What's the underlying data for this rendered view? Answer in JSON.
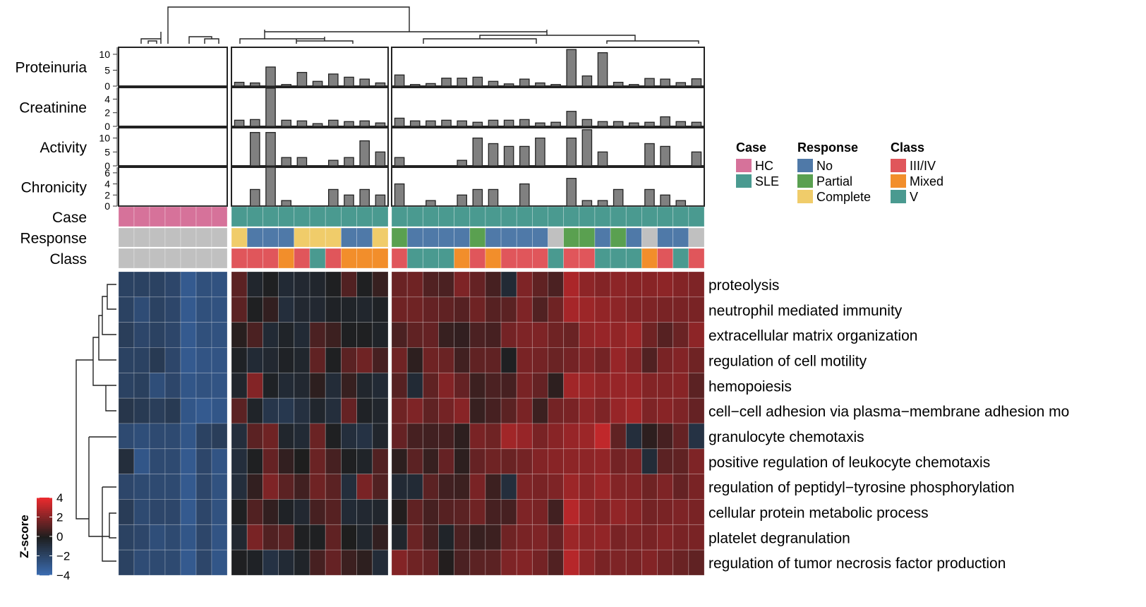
{
  "chart_data": {
    "type": "heatmap",
    "colorbar": {
      "title": "Z-score",
      "range": [
        -4,
        4
      ],
      "ticks": [
        4,
        2,
        0,
        -2,
        -4
      ],
      "tick_labels": [
        "4",
        "2",
        "0",
        "−2",
        "−4"
      ],
      "low_color": "#3b6eb5",
      "mid_color": "#1e1e1e",
      "high_color": "#e82a2e"
    },
    "rows": [
      "proteolysis",
      "neutrophil mediated immunity",
      "extracellular matrix organization",
      "regulation of cell motility",
      "hemopoiesis",
      "cell−cell adhesion via plasma−membrane adhesion mo",
      "granulocyte chemotaxis",
      "positive regulation of leukocyte chemotaxis",
      "regulation of peptidyl−tyrosine phosphorylation",
      "cellular protein metabolic process",
      "platelet degranulation",
      "regulation of tumor necrosis factor production"
    ],
    "column_groups": [
      7,
      10,
      20
    ],
    "annotations": {
      "labels": [
        "Case",
        "Response",
        "Class"
      ],
      "case": [
        "HC",
        "HC",
        "HC",
        "HC",
        "HC",
        "HC",
        "HC",
        "SLE",
        "SLE",
        "SLE",
        "SLE",
        "SLE",
        "SLE",
        "SLE",
        "SLE",
        "SLE",
        "SLE",
        "SLE",
        "SLE",
        "SLE",
        "SLE",
        "SLE",
        "SLE",
        "SLE",
        "SLE",
        "SLE",
        "SLE",
        "SLE",
        "SLE",
        "SLE",
        "SLE",
        "SLE",
        "SLE",
        "SLE",
        "SLE",
        "SLE",
        "SLE"
      ],
      "response": [
        "NA",
        "NA",
        "NA",
        "NA",
        "NA",
        "NA",
        "NA",
        "Complete",
        "No",
        "No",
        "No",
        "Complete",
        "Complete",
        "Complete",
        "No",
        "No",
        "Complete",
        "Partial",
        "No",
        "No",
        "No",
        "No",
        "Partial",
        "No",
        "No",
        "No",
        "No",
        "NA",
        "Partial",
        "Partial",
        "No",
        "Partial",
        "No",
        "NA",
        "No",
        "No",
        "NA"
      ],
      "class": [
        "NA",
        "NA",
        "NA",
        "NA",
        "NA",
        "NA",
        "NA",
        "III/IV",
        "III/IV",
        "III/IV",
        "Mixed",
        "III/IV",
        "V",
        "III/IV",
        "Mixed",
        "Mixed",
        "Mixed",
        "III/IV",
        "V",
        "V",
        "V",
        "Mixed",
        "III/IV",
        "Mixed",
        "III/IV",
        "III/IV",
        "III/IV",
        "V",
        "III/IV",
        "III/IV",
        "V",
        "V",
        "V",
        "Mixed",
        "III/IV",
        "V",
        "III/IV"
      ]
    },
    "tracks": [
      {
        "name": "Proteinuria",
        "ylim": [
          0,
          12.2
        ],
        "ticks": [
          0,
          5,
          10
        ],
        "tick_labels": [
          "0",
          "5",
          "10"
        ],
        "values": [
          null,
          null,
          null,
          null,
          null,
          null,
          null,
          1.2,
          1.0,
          6.0,
          0.5,
          4.3,
          1.5,
          3.8,
          2.8,
          2.2,
          1.0,
          3.5,
          0.5,
          0.8,
          2.5,
          2.5,
          2.8,
          1.5,
          0.7,
          2.2,
          1.0,
          0.5,
          11.5,
          3.2,
          10.5,
          1.2,
          0.5,
          2.4,
          2.2,
          1.1,
          2.3
        ]
      },
      {
        "name": "Creatinine",
        "ylim": [
          0,
          5.7
        ],
        "ticks": [
          0,
          2,
          4
        ],
        "tick_labels": [
          "0",
          "2",
          "4"
        ],
        "values": [
          null,
          null,
          null,
          null,
          null,
          null,
          null,
          0.9,
          1.0,
          5.6,
          0.9,
          0.8,
          0.4,
          0.9,
          0.7,
          0.8,
          0.5,
          1.2,
          0.8,
          0.8,
          0.9,
          0.8,
          0.6,
          0.9,
          0.9,
          1.0,
          0.5,
          0.6,
          2.2,
          1.0,
          0.7,
          0.7,
          0.5,
          0.6,
          1.4,
          0.7,
          0.6
        ]
      },
      {
        "name": "Activity",
        "ylim": [
          0,
          13.7
        ],
        "ticks": [
          0,
          5,
          10
        ],
        "tick_labels": [
          "0",
          "5",
          "10"
        ],
        "values": [
          null,
          null,
          null,
          null,
          null,
          null,
          null,
          0,
          12,
          12,
          3,
          3,
          0,
          2,
          3,
          9,
          5,
          3,
          0,
          0,
          0,
          2,
          10,
          8,
          7,
          7,
          10,
          0,
          10,
          13,
          5,
          0,
          0,
          8,
          7,
          0,
          5
        ]
      },
      {
        "name": "Chronicity",
        "ylim": [
          0,
          7
        ],
        "ticks": [
          0,
          2,
          4,
          6
        ],
        "tick_labels": [
          "0",
          "2",
          "4",
          "6"
        ],
        "values": [
          null,
          null,
          null,
          null,
          null,
          null,
          null,
          0,
          3,
          7,
          1,
          0,
          0,
          3,
          2,
          3,
          2,
          4,
          0,
          1,
          0,
          2,
          3,
          3,
          0,
          4,
          0,
          0,
          5,
          1,
          1,
          3,
          0,
          3,
          2,
          1,
          0
        ]
      }
    ],
    "values": [
      [
        -1.8,
        -1.8,
        -1.8,
        -2,
        -3,
        -2.5,
        -2.6,
        1.2,
        -0.4,
        -0.1,
        -0.6,
        -0.5,
        -0.4,
        -0.1,
        1.0,
        -0.1,
        0.5,
        1.5,
        1.6,
        1.0,
        0.9,
        1.9,
        1.4,
        0.8,
        -0.6,
        1.9,
        1.3,
        0.9,
        2.8,
        2.2,
        2.0,
        2.2,
        2.1,
        2.1,
        2.2,
        2.0,
        1.9
      ],
      [
        -1.8,
        -2.3,
        -1.8,
        -2,
        -3,
        -2.5,
        -2.6,
        1.2,
        -0.1,
        0.4,
        -0.8,
        -0.5,
        -0.5,
        -0.2,
        -0.3,
        -0.4,
        -0.2,
        1.6,
        1.6,
        1.4,
        1.3,
        1.1,
        1.6,
        1.1,
        1.2,
        1.9,
        1.0,
        1.6,
        2.7,
        2.5,
        2.3,
        2.2,
        2.0,
        1.9,
        1.8,
        1.8,
        1.8
      ],
      [
        -1.6,
        -2,
        -1.8,
        -2,
        -3,
        -2.5,
        -2.6,
        0.2,
        0.9,
        -0.6,
        -0.3,
        -0.6,
        0.9,
        0.6,
        -0.1,
        -0.1,
        -0.3,
        0.9,
        1.3,
        1.4,
        0.5,
        0.4,
        0.9,
        0.8,
        1.7,
        1.9,
        1.9,
        1.6,
        1.5,
        2.3,
        2.4,
        2.3,
        2.5,
        1.6,
        1.1,
        1.5,
        2.2
      ],
      [
        -1.8,
        -1.8,
        -1.4,
        -2,
        -3,
        -2.7,
        -2.7,
        -0.2,
        -0.6,
        -0.5,
        -0.2,
        -0.4,
        1.3,
        -0.1,
        1.2,
        1.6,
        0.8,
        1.6,
        0.3,
        1.6,
        1.5,
        0.7,
        1.3,
        1.3,
        -0.1,
        1.8,
        1.7,
        1.5,
        1.7,
        2.0,
        1.7,
        2.4,
        2.0,
        1.0,
        1.8,
        2.0,
        1.6
      ],
      [
        -1.8,
        -1.7,
        -2.4,
        -2,
        -2.8,
        -2.6,
        -2.7,
        -0.4,
        2.0,
        -0.2,
        -0.6,
        -0.5,
        0.3,
        -0.7,
        0.5,
        -0.4,
        -0.6,
        1.1,
        -0.6,
        1.3,
        2.0,
        1.4,
        0.6,
        0.9,
        0.8,
        1.8,
        1.4,
        0.3,
        2.6,
        2.5,
        2.3,
        2.4,
        2.4,
        2.0,
        2.0,
        2.1,
        1.2
      ],
      [
        -1.2,
        -1.4,
        -1.6,
        -1.4,
        -2.8,
        -3,
        -2.8,
        1.2,
        -0.3,
        -1.2,
        -1.3,
        -0.9,
        -0.4,
        -0.8,
        1.4,
        -0.2,
        -0.4,
        1.6,
        1.9,
        1.3,
        1.7,
        2.1,
        0.5,
        0.8,
        1.2,
        1.8,
        0.6,
        1.7,
        1.8,
        2.2,
        1.9,
        2.4,
        2.6,
        1.9,
        2.1,
        1.9,
        1.4
      ],
      [
        -2.2,
        -2.4,
        -2.2,
        -2.2,
        -2.8,
        -1.8,
        -1.6,
        -0.8,
        1.2,
        1.6,
        -0.4,
        -0.6,
        1.5,
        -0.1,
        -0.8,
        -1.0,
        -0.4,
        1.4,
        0.8,
        0.7,
        0.8,
        0.3,
        1.8,
        1.6,
        2.6,
        2.4,
        1.8,
        2.1,
        2.4,
        2.5,
        3.2,
        1.3,
        -0.8,
        0.3,
        0.8,
        1.4,
        -1.0
      ],
      [
        -0.8,
        -2.8,
        -2.2,
        -2.2,
        -3,
        -2,
        -2.7,
        -0.8,
        -0.1,
        1.4,
        0.4,
        0.0,
        1.5,
        0.8,
        -0.1,
        -0.3,
        1.0,
        0.3,
        1.2,
        0.5,
        1.4,
        0.3,
        1.4,
        1.6,
        1.5,
        1.7,
        2.0,
        2.1,
        2.2,
        2.2,
        2.3,
        1.7,
        1.8,
        -0.7,
        1.2,
        1.3,
        1.9
      ],
      [
        -2,
        -2.2,
        -2.2,
        -2.2,
        -3,
        -2,
        -2.6,
        -0.8,
        0.4,
        1.9,
        1.2,
        0.7,
        1.6,
        1.2,
        -0.8,
        1.8,
        1.0,
        -0.6,
        -0.6,
        1.2,
        0.7,
        0.6,
        1.8,
        0.6,
        -0.8,
        1.9,
        1.8,
        1.9,
        2.5,
        2.2,
        2.5,
        2.0,
        2.0,
        1.6,
        1.9,
        1.4,
        1.8
      ],
      [
        -1.5,
        -2.2,
        -2,
        -2,
        -3,
        -2,
        -2.6,
        -0.1,
        1.0,
        0.4,
        -0.2,
        -0.5,
        0.8,
        1.1,
        -0.6,
        -0.5,
        -0.4,
        0.1,
        1.3,
        0.8,
        1.1,
        1.2,
        1.6,
        0.8,
        0.8,
        1.9,
        1.8,
        0.7,
        3.0,
        2.3,
        2.0,
        2.3,
        2.1,
        1.7,
        1.8,
        1.9,
        1.8
      ],
      [
        -1.8,
        -2,
        -2.4,
        -2.2,
        -2.8,
        -2,
        -2.7,
        -0.5,
        1.8,
        1.0,
        1.2,
        -0.1,
        -0.1,
        1.3,
        0.0,
        -0.4,
        0.4,
        -0.4,
        1.5,
        0.8,
        -0.3,
        0.9,
        0.5,
        0.6,
        1.6,
        1.8,
        1.9,
        1.4,
        2.5,
        2.2,
        2.3,
        1.8,
        1.9,
        1.8,
        2.0,
        1.8,
        1.8
      ],
      [
        -1.8,
        -2.3,
        -2.2,
        -2.2,
        -3,
        -2,
        -2.8,
        -0.1,
        -0.2,
        -1.0,
        -0.6,
        -0.3,
        0.8,
        1.4,
        0.6,
        0.3,
        -0.7,
        2.0,
        1.6,
        1.4,
        0.1,
        0.9,
        1.2,
        1.2,
        1.9,
        2.0,
        1.7,
        1.0,
        3.0,
        2.2,
        1.8,
        1.9,
        1.8,
        2.0,
        1.7,
        1.5,
        1.3
      ]
    ]
  },
  "legend": [
    {
      "title": "Case",
      "items": [
        {
          "label": "HC",
          "color": "#d6729a"
        },
        {
          "label": "SLE",
          "color": "#4a9a90"
        }
      ]
    },
    {
      "title": "Response",
      "items": [
        {
          "label": "No",
          "color": "#4f79a8"
        },
        {
          "label": "Partial",
          "color": "#5aa050"
        },
        {
          "label": "Complete",
          "color": "#f0cc6a"
        }
      ]
    },
    {
      "title": "Class",
      "items": [
        {
          "label": "III/IV",
          "color": "#e0565b"
        },
        {
          "label": "Mixed",
          "color": "#f28e2b"
        },
        {
          "label": "V",
          "color": "#4a9a90"
        }
      ]
    }
  ],
  "na_color": "#c0c0c0"
}
